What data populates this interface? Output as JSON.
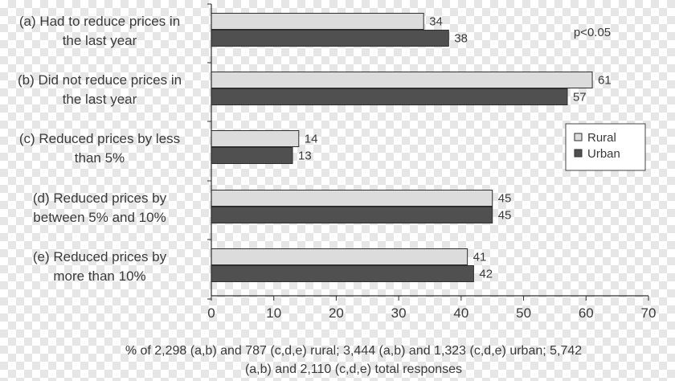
{
  "chart_data": {
    "type": "bar",
    "orientation": "horizontal",
    "categories": [
      [
        "(a) Had to reduce prices in",
        "the last year"
      ],
      [
        "(b) Did not reduce prices in",
        "the last year"
      ],
      [
        "(c) Reduced prices by less",
        "than 5%"
      ],
      [
        "(d) Reduced prices by",
        "between 5% and 10%"
      ],
      [
        "(e) Reduced prices by",
        "more than 10%"
      ]
    ],
    "series": [
      {
        "name": "Rural",
        "values": [
          34,
          61,
          14,
          45,
          41
        ],
        "color": "#dcdcdc"
      },
      {
        "name": "Urban",
        "values": [
          38,
          57,
          13,
          45,
          42
        ],
        "color": "#505050"
      }
    ],
    "xlim": [
      0,
      70
    ],
    "xticks": [
      0,
      10,
      20,
      30,
      40,
      50,
      60,
      70
    ],
    "xlabel": [
      "% of 2,298 (a,b) and 787 (c,d,e) rural; 3,444 (a,b) and 1,323 (c,d,e) urban; 5,742",
      "(a,b) and 2,110 (c,d,e) total responses"
    ],
    "annotation": "p<0.05",
    "legend_position": "right",
    "grid": false
  }
}
